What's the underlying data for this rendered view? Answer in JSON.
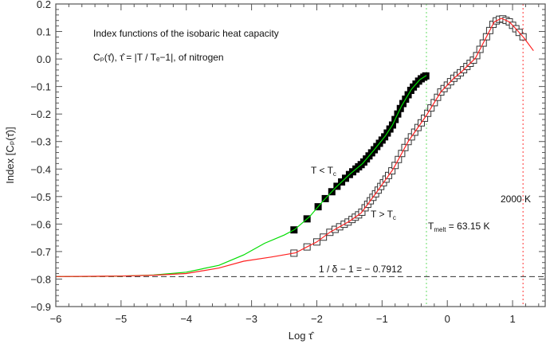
{
  "chart_data": {
    "type": "line",
    "title_lines": [
      "Index functions of the isobaric heat capacity",
      "Cₚ(τ̂), τ̂ = |T / Tₑ−1|, of nitrogen"
    ],
    "xlabel": "Log τ̂",
    "ylabel": "Index [Cₚ(τ̂)]",
    "xlim": [
      -6,
      1.5
    ],
    "ylim": [
      -0.9,
      0.2
    ],
    "xticks": [
      -6,
      -5,
      -4,
      -3,
      -2,
      -1,
      0,
      1
    ],
    "xtick_labels": [
      "−6",
      "−5",
      "−4",
      "−3",
      "−2",
      "−1",
      "0",
      "1"
    ],
    "yticks": [
      0.2,
      0.1,
      0.0,
      -0.1,
      -0.2,
      -0.3,
      -0.4,
      -0.5,
      -0.6,
      -0.7,
      -0.8,
      -0.9
    ],
    "ytick_labels": [
      "0.2",
      "0.1",
      "0.0",
      "−0.1",
      "−0.2",
      "−0.3",
      "−0.4",
      "−0.5",
      "−0.6",
      "−0.7",
      "−0.8",
      "−0.9"
    ],
    "grid": false,
    "series": [
      {
        "name": "T < Tc",
        "color": "#00dd00",
        "marker": "filled-square",
        "curve": [
          [
            -6,
            -0.791
          ],
          [
            -5.5,
            -0.7905
          ],
          [
            -5,
            -0.789
          ],
          [
            -4.5,
            -0.785
          ],
          [
            -4,
            -0.775
          ],
          [
            -3.5,
            -0.75
          ],
          [
            -3.12,
            -0.712
          ],
          [
            -2.8,
            -0.67
          ],
          [
            -2.5,
            -0.64
          ],
          [
            -2.34,
            -0.62
          ],
          [
            -2.11,
            -0.573
          ],
          [
            -1.9,
            -0.515
          ],
          [
            -1.7,
            -0.465
          ],
          [
            -1.5,
            -0.42
          ],
          [
            -1.3,
            -0.38
          ],
          [
            -1.12,
            -0.33
          ],
          [
            -0.95,
            -0.28
          ],
          [
            -0.84,
            -0.24
          ],
          [
            -0.7,
            -0.17
          ],
          [
            -0.55,
            -0.11
          ],
          [
            -0.42,
            -0.075
          ],
          [
            -0.32,
            -0.06
          ]
        ],
        "marker_x": [
          -2.35,
          -2.15,
          -1.98,
          -1.87,
          -1.77,
          -1.69,
          -1.62,
          -1.56,
          -1.5,
          -1.45,
          -1.4,
          -1.36,
          -1.32,
          -1.28,
          -1.24,
          -1.2,
          -1.16,
          -1.12,
          -1.08,
          -1.04,
          -1.0,
          -0.96,
          -0.92,
          -0.88,
          -0.84,
          -0.8,
          -0.76,
          -0.72,
          -0.68,
          -0.64,
          -0.6,
          -0.56,
          -0.52,
          -0.48,
          -0.44,
          -0.4,
          -0.36,
          -0.33
        ]
      },
      {
        "name": "T > Tc",
        "color": "#ff2020",
        "marker": "open-square",
        "curve": [
          [
            -6,
            -0.791
          ],
          [
            -5,
            -0.789
          ],
          [
            -4.5,
            -0.786
          ],
          [
            -4,
            -0.78
          ],
          [
            -3.5,
            -0.76
          ],
          [
            -3.12,
            -0.735
          ],
          [
            -2.7,
            -0.72
          ],
          [
            -2.33,
            -0.705
          ],
          [
            -2.0,
            -0.665
          ],
          [
            -1.8,
            -0.63
          ],
          [
            -1.5,
            -0.59
          ],
          [
            -1.32,
            -0.56
          ],
          [
            -1.1,
            -0.49
          ],
          [
            -0.83,
            -0.4
          ],
          [
            -0.6,
            -0.3
          ],
          [
            -0.32,
            -0.205
          ],
          [
            -0.1,
            -0.12
          ],
          [
            0.1,
            -0.07
          ],
          [
            0.22,
            -0.046
          ],
          [
            0.43,
            0.003
          ],
          [
            0.62,
            0.09
          ],
          [
            0.72,
            0.135
          ],
          [
            0.83,
            0.148
          ],
          [
            0.95,
            0.135
          ],
          [
            1.05,
            0.11
          ],
          [
            1.17,
            0.078
          ],
          [
            1.32,
            0.03
          ]
        ],
        "marker_x": [
          -2.35,
          -2.15,
          -2.0,
          -1.9,
          -1.8,
          -1.72,
          -1.65,
          -1.58,
          -1.52,
          -1.46,
          -1.41,
          -1.36,
          -1.31,
          -1.26,
          -1.22,
          -1.18,
          -1.14,
          -1.1,
          -1.06,
          -1.02,
          -0.98,
          -0.94,
          -0.9,
          -0.85,
          -0.8,
          -0.75,
          -0.7,
          -0.65,
          -0.6,
          -0.55,
          -0.5,
          -0.45,
          -0.4,
          -0.35,
          -0.3,
          -0.25,
          -0.2,
          -0.15,
          -0.1,
          -0.05,
          0.0,
          0.05,
          0.1,
          0.15,
          0.2,
          0.25,
          0.3,
          0.35,
          0.4,
          0.45,
          0.5,
          0.55,
          0.6,
          0.65,
          0.7,
          0.75,
          0.8,
          0.85,
          0.9,
          0.95,
          1.0,
          1.05,
          1.1,
          1.16
        ]
      }
    ],
    "reference_lines": {
      "asymptote": {
        "y": -0.7912,
        "label": "1 / δ − 1 = − 0.7912",
        "color": "#333333"
      },
      "melt": {
        "x": -0.32,
        "label_main": "T",
        "label_sub": "melt",
        "label_rest": " = 63.15 K",
        "color": "#66dd66"
      },
      "upper": {
        "x": 1.16,
        "label": "2000 K",
        "color": "#ff3333"
      }
    },
    "series_labels": {
      "below": {
        "main": "T < T",
        "sub": "c"
      },
      "above": {
        "main": "T > T",
        "sub": "c"
      }
    }
  }
}
